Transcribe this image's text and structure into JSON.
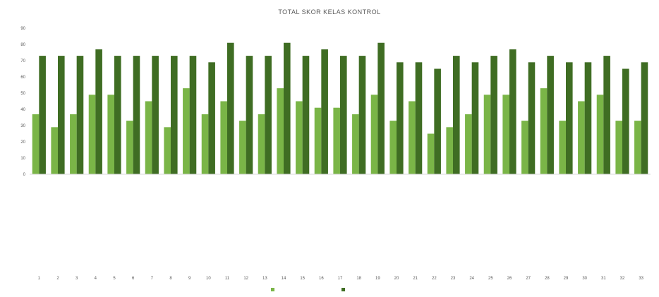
{
  "chart_data": {
    "type": "bar",
    "title": "TOTAL SKOR KELAS KONTROL",
    "ylim": [
      0,
      90
    ],
    "yticks": [
      0,
      10,
      20,
      30,
      40,
      50,
      60,
      70,
      80,
      90
    ],
    "categories": [
      "1",
      "2",
      "3",
      "4",
      "5",
      "6",
      "7",
      "8",
      "9",
      "10",
      "11",
      "12",
      "13",
      "14",
      "15",
      "16",
      "17",
      "18",
      "19",
      "20",
      "21",
      "22",
      "23",
      "24",
      "25",
      "26",
      "27",
      "28",
      "29",
      "30",
      "31",
      "32",
      "33"
    ],
    "category_names": [
      "",
      "",
      "",
      "",
      "",
      "",
      "",
      "",
      "",
      "",
      "",
      "",
      "",
      "",
      "",
      "",
      "",
      "",
      "",
      "",
      "",
      "",
      "",
      "",
      "",
      "",
      "",
      "",
      "",
      "",
      "",
      "",
      ""
    ],
    "series": [
      {
        "name": "",
        "color": "#7ab547",
        "values": [
          37,
          29,
          37,
          49,
          49,
          33,
          45,
          29,
          53,
          37,
          45,
          33,
          37,
          53,
          45,
          41,
          41,
          37,
          49,
          33,
          45,
          25,
          29,
          37,
          49,
          49,
          33,
          53,
          33,
          45,
          49,
          33,
          33
        ]
      },
      {
        "name": "",
        "color": "#3f6d23",
        "values": [
          73,
          73,
          73,
          77,
          73,
          73,
          73,
          73,
          73,
          69,
          81,
          73,
          73,
          81,
          73,
          77,
          73,
          73,
          81,
          69,
          69,
          65,
          73,
          69,
          73,
          77,
          69,
          73,
          69,
          69,
          73,
          65,
          69
        ]
      }
    ],
    "legend_position": "bottom",
    "grid": false
  },
  "footer": {
    "text": ""
  }
}
